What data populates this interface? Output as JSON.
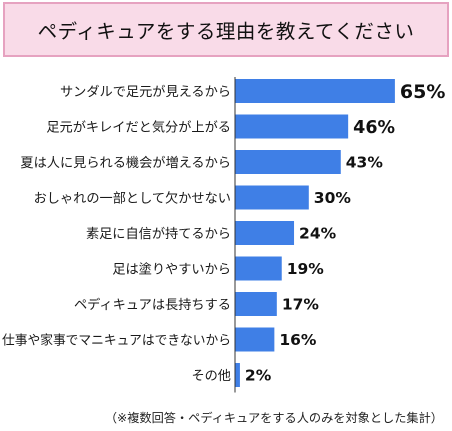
{
  "chart_data": {
    "type": "bar",
    "orientation": "horizontal",
    "title": "ペディキュアをする理由を教えてください",
    "categories": [
      "サンダルで足元が見えるから",
      "足元がキレイだと気分が上がる",
      "夏は人に見られる機会が増えるから",
      "おしゃれの一部として欠かせない",
      "素足に自信が持てるから",
      "足は塗りやすいから",
      "ペディキュアは長持ちする",
      "仕事や家事でマニキュアはできないから",
      "その他"
    ],
    "values": [
      65,
      46,
      43,
      30,
      24,
      19,
      17,
      16,
      2
    ],
    "value_labels": [
      "65%",
      "46%",
      "43%",
      "30%",
      "24%",
      "19%",
      "17%",
      "16%",
      "2%"
    ],
    "unit": "%",
    "xlim": [
      0,
      100
    ],
    "bar_color": "#3f7fe6",
    "title_bg_color": "#f9dbe8",
    "title_border_color": "#e6a2c0",
    "grid": false,
    "legend": "none",
    "footnote": "（※複数回答・ペディキュアをする人のみを対象とした集計）"
  }
}
